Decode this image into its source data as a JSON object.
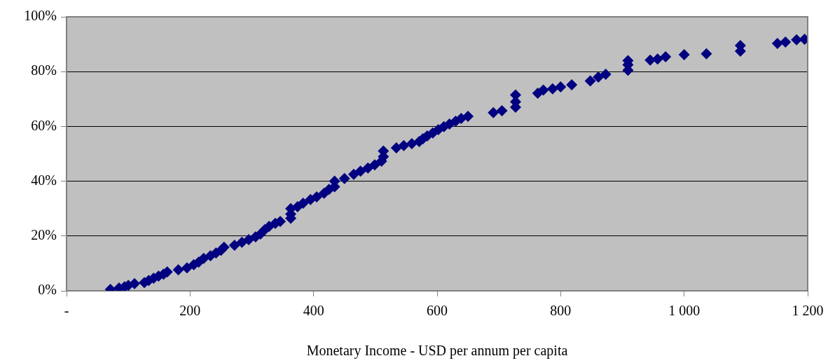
{
  "chart_data": {
    "type": "scatter",
    "xlabel": "Monetary Income - USD per annum per capita",
    "x": [
      71,
      85,
      94,
      100,
      110,
      126,
      133,
      141,
      149,
      157,
      163,
      181,
      195,
      206,
      214,
      222,
      233,
      242,
      250,
      255,
      272,
      284,
      295,
      306,
      314,
      321,
      328,
      338,
      346,
      363,
      363,
      363,
      374,
      383,
      395,
      405,
      417,
      425,
      434,
      434,
      450,
      465,
      476,
      488,
      499,
      510,
      513,
      513,
      534,
      546,
      559,
      571,
      577,
      584,
      593,
      602,
      611,
      620,
      630,
      639,
      650,
      691,
      705,
      727,
      727,
      727,
      763,
      772,
      787,
      800,
      818,
      848,
      861,
      873,
      909,
      909,
      909,
      945,
      957,
      970,
      1000,
      1036,
      1091,
      1091,
      1151,
      1164,
      1182,
      1195
    ],
    "series": [
      {
        "color": "#000080",
        "values": [
          0.5,
          1,
          1.5,
          2,
          2.6,
          3,
          3.8,
          4.6,
          5.4,
          6.1,
          6.9,
          7.7,
          8.4,
          9.5,
          10.5,
          11.8,
          12.8,
          13.8,
          14.8,
          15.9,
          16.6,
          17.7,
          18.7,
          19.7,
          20.7,
          22.3,
          23.5,
          24.6,
          25.3,
          26.5,
          28,
          30,
          30.7,
          32,
          33.3,
          34.3,
          35.6,
          37,
          38,
          40,
          41,
          42.5,
          43.7,
          44.8,
          46,
          47.3,
          49,
          51,
          52.2,
          53,
          53.7,
          54.5,
          55.5,
          56.5,
          57.6,
          58.8,
          59.9,
          60.9,
          61.9,
          62.9,
          63.7,
          65,
          65.7,
          67,
          69,
          71.5,
          72.1,
          73.3,
          73.7,
          74.4,
          75.2,
          76.6,
          78,
          79,
          80.5,
          82.5,
          84,
          84.2,
          84.6,
          85.4,
          86.2,
          86.5,
          87.5,
          89.5,
          90.3,
          90.8,
          91.6,
          91.8
        ]
      }
    ],
    "xlim": [
      0,
      1200
    ],
    "xticks": [
      {
        "value": 0,
        "label": "-"
      },
      200,
      400,
      600,
      800,
      {
        "value": 1000,
        "label": "1 000"
      },
      {
        "value": 1200,
        "label": "1 200"
      }
    ],
    "ylim": [
      0,
      100
    ],
    "yticks": [
      {
        "value": 0,
        "label": "0%"
      },
      {
        "value": 20,
        "label": "20%"
      },
      {
        "value": 40,
        "label": "40%"
      },
      {
        "value": 60,
        "label": "60%"
      },
      {
        "value": 80,
        "label": "80%"
      },
      {
        "value": 100,
        "label": "100%"
      }
    ],
    "grid": "y",
    "legend": false,
    "marker": "diamond"
  }
}
